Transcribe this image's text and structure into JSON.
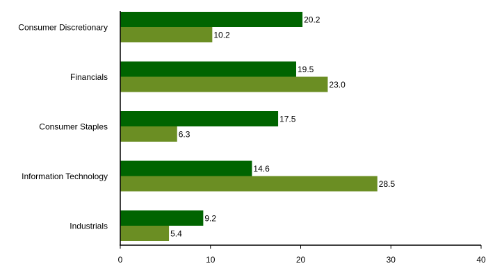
{
  "chart_data": {
    "type": "bar",
    "orientation": "horizontal",
    "categories": [
      "Consumer Discretionary",
      "Financials",
      "Consumer Staples",
      "Information Technology",
      "Industrials"
    ],
    "series": [
      {
        "values": [
          20.2,
          19.5,
          17.5,
          14.6,
          9.2
        ],
        "color": "#006400"
      },
      {
        "values": [
          10.2,
          23.0,
          6.3,
          28.5,
          5.4
        ],
        "color": "#6b8e23"
      }
    ],
    "value_labels": [
      [
        "20.2",
        "19.5",
        "17.5",
        "14.6",
        "9.2"
      ],
      [
        "10.2",
        "23.0",
        "6.3",
        "28.5",
        "5.4"
      ]
    ],
    "xlim": [
      0,
      40
    ],
    "xticks": [
      "0",
      "10",
      "20",
      "30",
      "40"
    ],
    "grid": false,
    "legend": "none"
  }
}
